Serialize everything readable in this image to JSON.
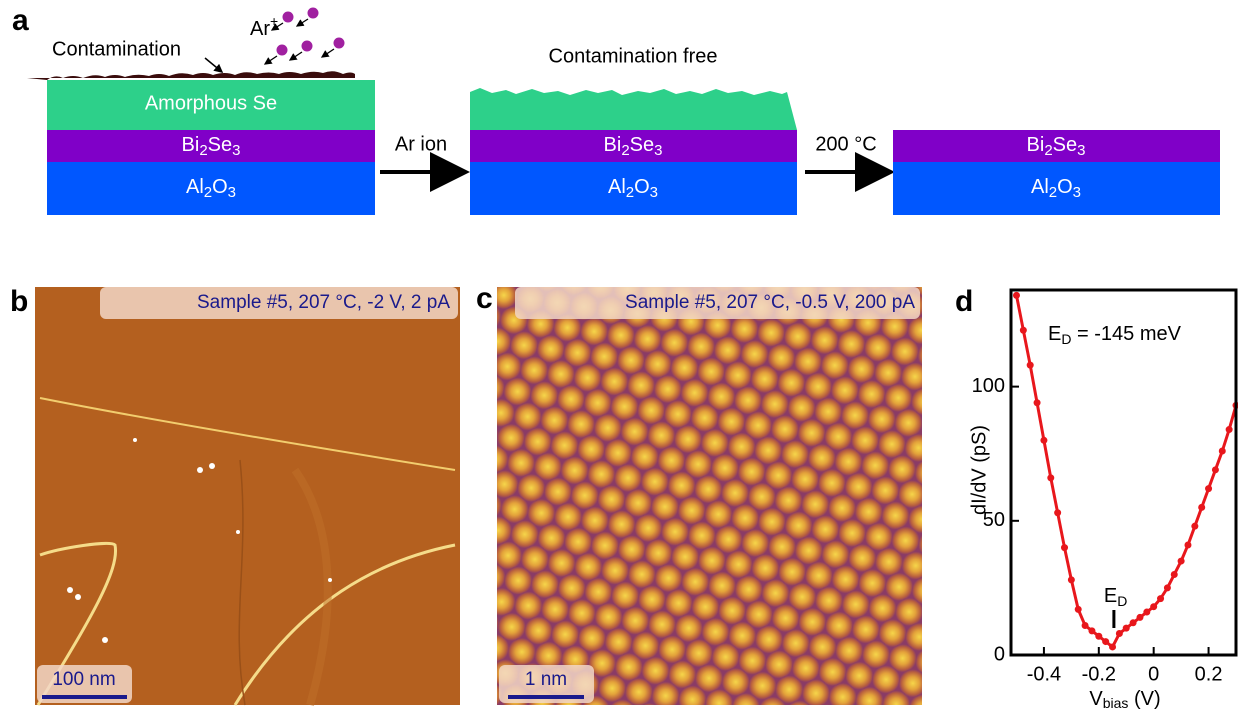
{
  "panel_a": {
    "label": "a",
    "contamination": "Contamination",
    "ion": "Ar",
    "ion_charge": "+",
    "layer_se": "Amorphous Se",
    "layer_bi": "Bi2Se3",
    "layer_al": "Al2O3",
    "step1": "Ar ion",
    "step2": "200 °C",
    "free": "Contamination free"
  },
  "panel_b": {
    "label": "b",
    "caption": "Sample #5, 207 °C, -2 V, 2 pA",
    "scale": "100 nm"
  },
  "panel_c": {
    "label": "c",
    "caption": "Sample #5, 207 °C, -0.5 V, 200 pA",
    "scale": "1 nm"
  },
  "chart_data": {
    "type": "line",
    "panel_label": "d",
    "annotation": {
      "main": "E",
      "sub": "D",
      "rest": " = -145 meV"
    },
    "x_label": {
      "main": "V",
      "sub": "bias",
      "rest": " (V)"
    },
    "y_label": "dI/dV (pS)",
    "ed_marker": {
      "x": -0.145,
      "main": "E",
      "sub": "D"
    },
    "color": "#e8171c",
    "x": [
      -0.5,
      -0.475,
      -0.45,
      -0.425,
      -0.4,
      -0.375,
      -0.35,
      -0.325,
      -0.3,
      -0.275,
      -0.25,
      -0.225,
      -0.2,
      -0.175,
      -0.15,
      -0.125,
      -0.1,
      -0.075,
      -0.05,
      -0.025,
      0,
      0.025,
      0.05,
      0.075,
      0.1,
      0.125,
      0.15,
      0.175,
      0.2,
      0.225,
      0.25,
      0.275,
      0.3
    ],
    "values": [
      134,
      121,
      108,
      94,
      80,
      66,
      53,
      40,
      28,
      17,
      11,
      9,
      7,
      5,
      3,
      8,
      10,
      12,
      14,
      16,
      18,
      21,
      25,
      30,
      35,
      41,
      48,
      55,
      62,
      69,
      76,
      84,
      93
    ],
    "xlim": [
      -0.52,
      0.3
    ],
    "ylim": [
      0,
      136
    ],
    "xticks": [
      -0.4,
      -0.2,
      0,
      0.2
    ],
    "yticks": [
      0,
      50,
      100
    ]
  }
}
